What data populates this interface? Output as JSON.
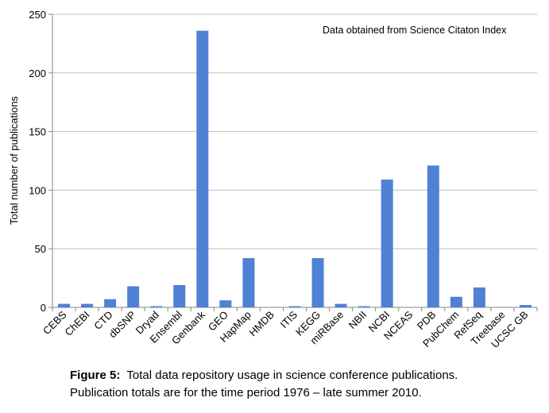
{
  "chart_data": {
    "type": "bar",
    "ylabel": "Total number of publications",
    "xlabel": "",
    "ylim": [
      0,
      250
    ],
    "yticks": [
      0,
      50,
      100,
      150,
      200,
      250
    ],
    "grid": true,
    "annotation": "Data obtained from Science Citaton Index",
    "categories": [
      "CEBS",
      "ChEBI",
      "CTD",
      "dbSNP",
      "Dryad",
      "Ensembl",
      "Genbank",
      "GEO",
      "HapMap",
      "HMDB",
      "ITIS",
      "KEGG",
      "miRBase",
      "NBII",
      "NCBI",
      "NCEAS",
      "PDB",
      "PubChem",
      "RefSeq",
      "Treebase",
      "UCSC GB"
    ],
    "values": [
      3,
      3,
      7,
      18,
      1,
      19,
      236,
      6,
      42,
      0,
      1,
      42,
      3,
      1,
      109,
      0,
      121,
      9,
      17,
      0,
      2
    ],
    "bar_color": "#4F81D4"
  },
  "caption": {
    "label": "Figure 5:",
    "line1": "Total data repository usage in science conference publications.",
    "line2": "Publication totals are for the time period 1976 – late summer 2010."
  }
}
